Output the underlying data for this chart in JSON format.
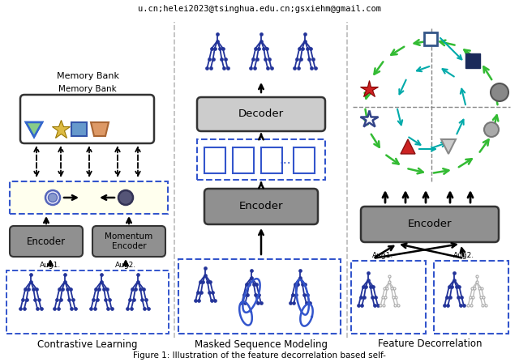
{
  "title_text": "u.cn;helei2023@tsinghua.edu.cn;gsxiehm@gmail.com",
  "caption": "Figure 1: Illustration of the feature decorrelation based self-",
  "bg_color": "#ffffff",
  "panel_labels": [
    "Contrastive Learning",
    "Masked Sequence Modeling",
    "Feature Decorrelation"
  ],
  "encoder_color": "#909090",
  "dashed_box_color": "#3355cc",
  "arrow_color": "#111111",
  "green_arrow_color": "#33bb33",
  "teal_arrow_color": "#00aaaa",
  "divider_color": "#bbbbbb"
}
